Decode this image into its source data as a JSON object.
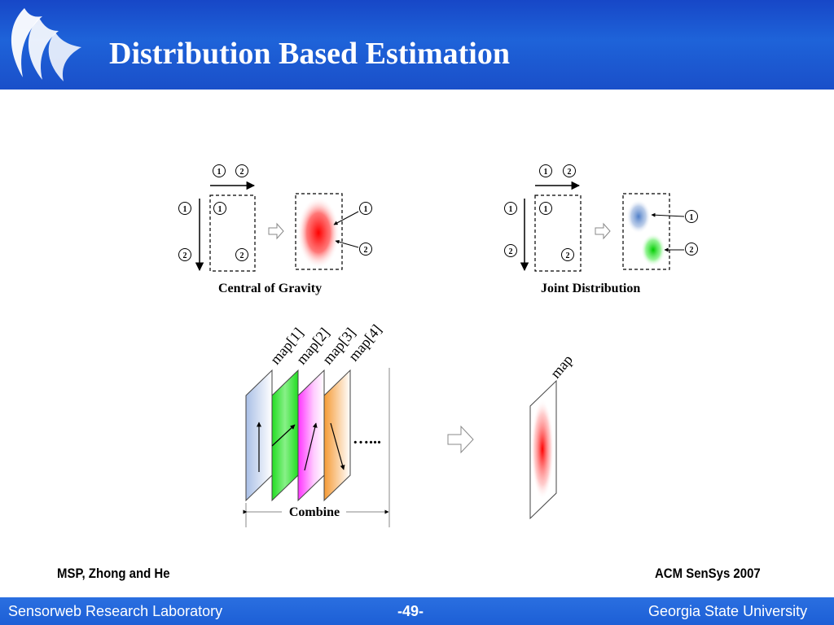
{
  "header": {
    "title": "Distribution Based Estimation"
  },
  "diagram": {
    "node_labels": {
      "one": "1",
      "two": "2"
    },
    "caption_left": "Central of Gravity",
    "caption_right": "Joint Distribution",
    "map_labels": [
      "map[1]",
      "map[2]",
      "map[3]",
      "map[4]"
    ],
    "ellipsis": "…...",
    "combine_label": "Combine",
    "result_label": "map"
  },
  "footer": {
    "left_note": "MSP, Zhong and He",
    "right_note": "ACM SenSys 2007",
    "lab": "Sensorweb Research Laboratory",
    "page": "-49-",
    "university": "Georgia State University"
  },
  "colors": {
    "header_blue": "#1747c7",
    "footer_blue": "#2a6fe0",
    "red": "#ff0000",
    "green": "#00cc00",
    "blue": "#4f7fc9",
    "orange": "#f5a040",
    "magenta": "#ff33ff"
  }
}
